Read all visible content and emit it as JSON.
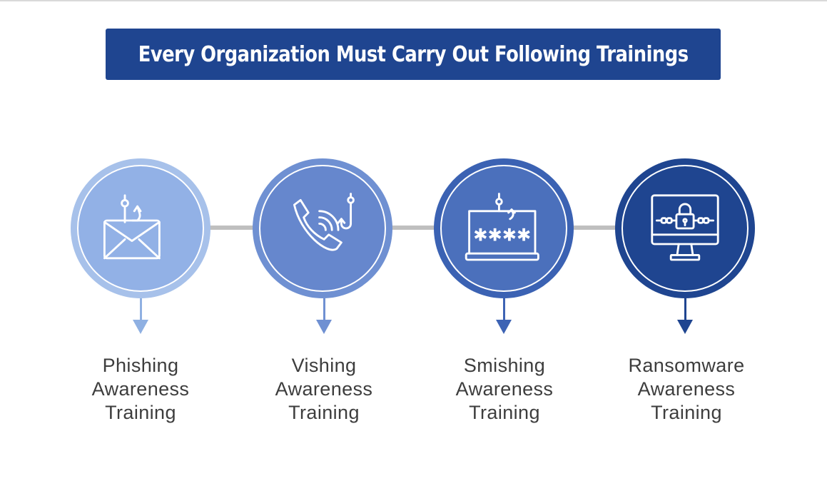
{
  "title": "Every Organization Must Carry Out Following Trainings",
  "colors": {
    "title_bg": "#1f4590",
    "connector": "#bfbfbf",
    "text": "#3d3d3d"
  },
  "trainings": [
    {
      "icon": "phishing-envelope-icon",
      "outer_color": "#a7c1ea",
      "inner_color": "#92b1e6",
      "arrow_color": "#8fb0e2",
      "label_lines": [
        "Phishing",
        "Awareness",
        "Training"
      ]
    },
    {
      "icon": "vishing-phone-icon",
      "outer_color": "#6f90d2",
      "inner_color": "#6687cd",
      "arrow_color": "#6f90d2",
      "label_lines": [
        "Vishing",
        "Awareness",
        "Training"
      ]
    },
    {
      "icon": "smishing-laptop-icon",
      "outer_color": "#3b62b3",
      "inner_color": "#4b70bc",
      "arrow_color": "#3d63b4",
      "label_lines": [
        "Smishing",
        "Awareness",
        "Training"
      ]
    },
    {
      "icon": "ransomware-monitor-lock-icon",
      "outer_color": "#1f4590",
      "inner_color": "#1f4590",
      "arrow_color": "#1f4590",
      "label_lines": [
        "Ransomware",
        "Awareness",
        "Training"
      ]
    }
  ]
}
